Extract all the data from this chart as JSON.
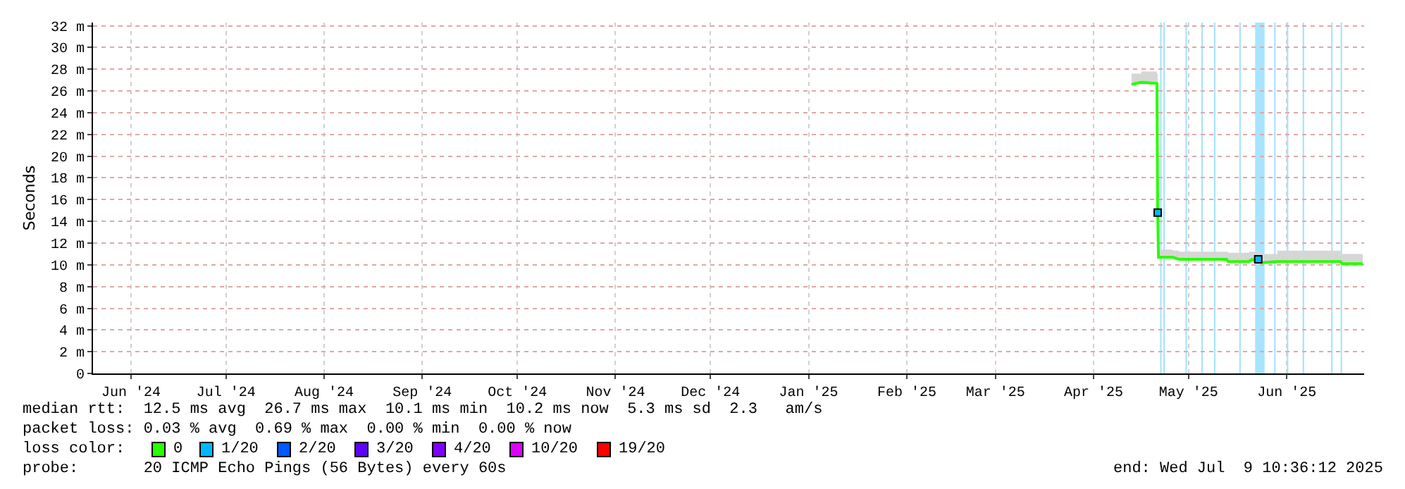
{
  "chart_data": {
    "type": "line",
    "ylabel": "Seconds",
    "xlim": [
      "2024-06-03",
      "2025-07-09T10:36"
    ],
    "xticks": [
      {
        "value": "2024-06-15",
        "label": "Jun '24"
      },
      {
        "value": "2024-07-15",
        "label": "Jul '24"
      },
      {
        "value": "2024-08-15",
        "label": "Aug '24"
      },
      {
        "value": "2024-09-15",
        "label": "Sep '24"
      },
      {
        "value": "2024-10-15",
        "label": "Oct '24"
      },
      {
        "value": "2024-11-15",
        "label": "Nov '24"
      },
      {
        "value": "2024-12-15",
        "label": "Dec '24"
      },
      {
        "value": "2025-01-15",
        "label": "Jan '25"
      },
      {
        "value": "2025-02-15",
        "label": "Feb '25"
      },
      {
        "value": "2025-03-15",
        "label": "Mar '25"
      },
      {
        "value": "2025-04-15",
        "label": "Apr '25"
      },
      {
        "value": "2025-05-15",
        "label": "May '25"
      },
      {
        "value": "2025-06-15",
        "label": "Jun '25"
      }
    ],
    "ylim": [
      0,
      32.3
    ],
    "yticks": [
      0,
      {
        "value": 2,
        "label": "2 m"
      },
      {
        "value": 4,
        "label": "4 m"
      },
      {
        "value": 6,
        "label": "6 m"
      },
      {
        "value": 8,
        "label": "8 m"
      },
      {
        "value": 10,
        "label": "10 m"
      },
      {
        "value": 12,
        "label": "12 m"
      },
      {
        "value": 14,
        "label": "14 m"
      },
      {
        "value": 16,
        "label": "16 m"
      },
      {
        "value": 18,
        "label": "18 m"
      },
      {
        "value": 20,
        "label": "20 m"
      },
      {
        "value": 22,
        "label": "22 m"
      },
      {
        "value": 24,
        "label": "24 m"
      },
      {
        "value": 26,
        "label": "26 m"
      },
      {
        "value": 28,
        "label": "28 m"
      },
      {
        "value": 30,
        "label": "30 m"
      },
      {
        "value": 32,
        "label": "32 m"
      }
    ],
    "grid": true,
    "legend": "bottom",
    "series": [
      {
        "name": "0",
        "color": "#26ff00",
        "x": [
          "2025-04-27",
          "2025-04-30",
          "2025-05-05",
          "2025-05-05T06:00",
          "2025-05-05T12:00",
          "2025-05-10",
          "2025-05-12",
          "2025-05-27",
          "2025-05-27T12:00",
          "2025-06-03",
          "2025-06-04",
          "2025-06-07",
          "2025-06-12",
          "2025-06-20",
          "2025-07-02",
          "2025-07-02T12:00",
          "2025-07-09"
        ],
        "values": [
          26.6,
          26.8,
          26.7,
          14.8,
          10.7,
          10.7,
          10.5,
          10.5,
          10.3,
          10.3,
          10.5,
          10.2,
          10.3,
          10.3,
          10.3,
          10.1,
          10.1
        ],
        "lower": [
          26.6,
          26.6,
          26.6,
          14.8,
          10.6,
          10.6,
          10.4,
          10.4,
          10.2,
          10.2,
          10.3,
          10.1,
          10.2,
          10.2,
          10.2,
          10.0,
          10.0
        ],
        "upper": [
          27.6,
          27.8,
          27.6,
          14.8,
          11.4,
          11.3,
          11.2,
          11.2,
          11.1,
          11.2,
          11.2,
          11.0,
          11.3,
          11.3,
          11.1,
          11.0,
          11.0
        ]
      },
      {
        "name": "1/20",
        "color": "#00b8ff",
        "type": "scatter",
        "marker": "square",
        "x": [
          "2025-05-05T06:00",
          "2025-06-06"
        ],
        "values": [
          14.8,
          10.5
        ]
      },
      {
        "name": "2/20",
        "color": "#0059ff"
      },
      {
        "name": "3/20",
        "color": "#5e00ff"
      },
      {
        "name": "4/20",
        "color": "#7e00ff"
      },
      {
        "name": "10/20",
        "color": "#dd00ff"
      },
      {
        "name": "19/20",
        "color": "#ff0000"
      }
    ],
    "bands": [
      {
        "axis": "x",
        "from": "2025-05-06",
        "to": "2025-05-06T12:00",
        "color": "#a8e4ff"
      },
      {
        "axis": "x",
        "from": "2025-05-07",
        "to": "2025-05-07T12:00",
        "color": "#a8e4ff"
      },
      {
        "axis": "x",
        "from": "2025-05-14",
        "to": "2025-05-14T12:00",
        "color": "#a8e4ff"
      },
      {
        "axis": "x",
        "from": "2025-05-19",
        "to": "2025-05-19T12:00",
        "color": "#a8e4ff"
      },
      {
        "axis": "x",
        "from": "2025-05-23",
        "to": "2025-05-23T12:00",
        "color": "#a8e4ff"
      },
      {
        "axis": "x",
        "from": "2025-05-31",
        "to": "2025-05-31T12:00",
        "color": "#a8e4ff"
      },
      {
        "axis": "x",
        "from": "2025-06-05",
        "to": "2025-06-08",
        "color": "#a8e4ff"
      },
      {
        "axis": "x",
        "from": "2025-06-11",
        "to": "2025-06-11T12:00",
        "color": "#a8e4ff"
      },
      {
        "axis": "x",
        "from": "2025-06-15",
        "to": "2025-06-15T12:00",
        "color": "#a8e4ff"
      },
      {
        "axis": "x",
        "from": "2025-06-20",
        "to": "2025-06-20T12:00",
        "color": "#a8e4ff"
      },
      {
        "axis": "x",
        "from": "2025-06-29",
        "to": "2025-06-29T12:00",
        "color": "#a8e4ff"
      },
      {
        "axis": "x",
        "from": "2025-07-02",
        "to": "2025-07-02T12:00",
        "color": "#a8e4ff"
      }
    ],
    "annotations": [
      "median rtt:  12.5 ms avg  26.7 ms max  10.1 ms min  10.2 ms now  5.3 ms sd  2.3   am/s",
      "packet loss: 0.03 % avg  0.69 % max  0.00 % min  0.00 % now",
      "loss color:",
      "probe:       20 ICMP Echo Pings (56 Bytes) every 60s",
      "end: Wed Jul  9 10:36:12 2025"
    ]
  }
}
